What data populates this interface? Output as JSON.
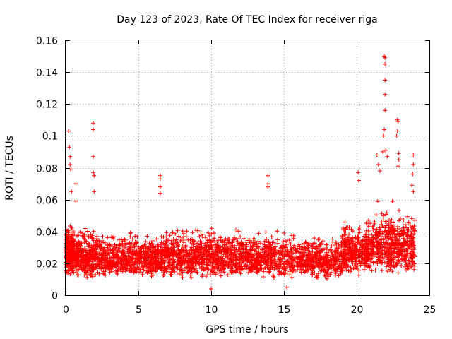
{
  "chart_data": {
    "type": "scatter",
    "title": "Day 123 of 2023, Rate Of TEC Index for receiver riga",
    "xlabel": "GPS time / hours",
    "ylabel": "ROTI / TECUs",
    "xlim": [
      0,
      25
    ],
    "ylim": [
      0,
      0.16
    ],
    "xticks": [
      0,
      5,
      10,
      15,
      20,
      25
    ],
    "xtick_labels": [
      "0",
      "5",
      "10",
      "15",
      "20",
      "25"
    ],
    "yticks": [
      0,
      0.02,
      0.04,
      0.06,
      0.08,
      0.1,
      0.12,
      0.14,
      0.16
    ],
    "ytick_labels": [
      "0",
      "0.02",
      "0.04",
      "0.06",
      "0.08",
      "0.1",
      "0.12",
      "0.14",
      "0.16"
    ],
    "grid": true,
    "marker": "plus",
    "series_color": "#ff0000",
    "data_x_range": [
      0,
      24
    ],
    "typical_band": [
      0.01,
      0.035
    ],
    "series": [
      {
        "name": "ROTI",
        "notable_points": [
          {
            "x": 0.2,
            "y": 0.103
          },
          {
            "x": 0.25,
            "y": 0.093
          },
          {
            "x": 0.3,
            "y": 0.087
          },
          {
            "x": 0.3,
            "y": 0.082
          },
          {
            "x": 0.35,
            "y": 0.079
          },
          {
            "x": 0.4,
            "y": 0.065
          },
          {
            "x": 0.7,
            "y": 0.07
          },
          {
            "x": 0.7,
            "y": 0.059
          },
          {
            "x": 1.9,
            "y": 0.108
          },
          {
            "x": 1.9,
            "y": 0.104
          },
          {
            "x": 1.9,
            "y": 0.087
          },
          {
            "x": 1.9,
            "y": 0.077
          },
          {
            "x": 1.95,
            "y": 0.075
          },
          {
            "x": 1.95,
            "y": 0.065
          },
          {
            "x": 6.5,
            "y": 0.075
          },
          {
            "x": 6.5,
            "y": 0.073
          },
          {
            "x": 6.5,
            "y": 0.068
          },
          {
            "x": 6.5,
            "y": 0.064
          },
          {
            "x": 10.0,
            "y": 0.004
          },
          {
            "x": 13.9,
            "y": 0.075
          },
          {
            "x": 13.9,
            "y": 0.07
          },
          {
            "x": 13.9,
            "y": 0.068
          },
          {
            "x": 15.2,
            "y": 0.005
          },
          {
            "x": 20.1,
            "y": 0.077
          },
          {
            "x": 20.15,
            "y": 0.072
          },
          {
            "x": 21.4,
            "y": 0.088
          },
          {
            "x": 21.5,
            "y": 0.082
          },
          {
            "x": 21.6,
            "y": 0.078
          },
          {
            "x": 21.8,
            "y": 0.09
          },
          {
            "x": 21.9,
            "y": 0.15
          },
          {
            "x": 21.95,
            "y": 0.149
          },
          {
            "x": 21.95,
            "y": 0.145
          },
          {
            "x": 21.95,
            "y": 0.135
          },
          {
            "x": 21.95,
            "y": 0.126
          },
          {
            "x": 21.95,
            "y": 0.116
          },
          {
            "x": 21.9,
            "y": 0.104
          },
          {
            "x": 21.85,
            "y": 0.1
          },
          {
            "x": 22.0,
            "y": 0.091
          },
          {
            "x": 22.1,
            "y": 0.087
          },
          {
            "x": 22.8,
            "y": 0.11
          },
          {
            "x": 22.85,
            "y": 0.109
          },
          {
            "x": 22.8,
            "y": 0.103
          },
          {
            "x": 22.75,
            "y": 0.1
          },
          {
            "x": 22.9,
            "y": 0.089
          },
          {
            "x": 22.9,
            "y": 0.085
          },
          {
            "x": 22.85,
            "y": 0.081
          },
          {
            "x": 23.9,
            "y": 0.088
          },
          {
            "x": 23.9,
            "y": 0.082
          },
          {
            "x": 23.85,
            "y": 0.076
          },
          {
            "x": 23.8,
            "y": 0.069
          },
          {
            "x": 23.9,
            "y": 0.065
          }
        ],
        "clusters": [
          {
            "x_range": [
              0.0,
              0.6
            ],
            "y_range": [
              0.012,
              0.048
            ],
            "count": 260
          },
          {
            "x_range": [
              0.6,
              2.2
            ],
            "y_range": [
              0.01,
              0.045
            ],
            "count": 340
          },
          {
            "x_range": [
              2.2,
              6.5
            ],
            "y_range": [
              0.01,
              0.042
            ],
            "count": 700
          },
          {
            "x_range": [
              6.5,
              9.0
            ],
            "y_range": [
              0.01,
              0.045
            ],
            "count": 420
          },
          {
            "x_range": [
              9.0,
              12.0
            ],
            "y_range": [
              0.01,
              0.045
            ],
            "count": 480
          },
          {
            "x_range": [
              12.0,
              15.5
            ],
            "y_range": [
              0.01,
              0.043
            ],
            "count": 520
          },
          {
            "x_range": [
              15.5,
              19.0
            ],
            "y_range": [
              0.01,
              0.04
            ],
            "count": 480
          },
          {
            "x_range": [
              19.0,
              21.0
            ],
            "y_range": [
              0.012,
              0.05
            ],
            "count": 380
          },
          {
            "x_range": [
              21.0,
              24.0
            ],
            "y_range": [
              0.012,
              0.06
            ],
            "count": 560
          }
        ]
      }
    ]
  }
}
